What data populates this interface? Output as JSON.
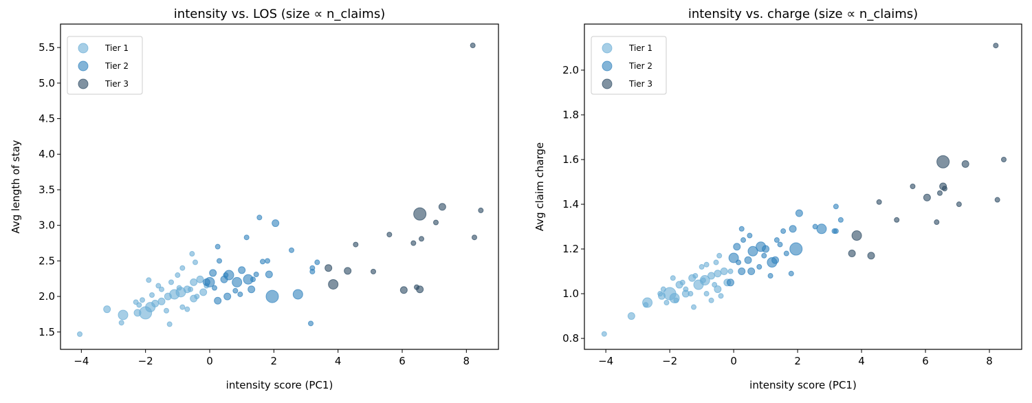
{
  "tier_colors": {
    "Tier 1": "#6baed6",
    "Tier 2": "#3182bd",
    "Tier 3": "#2c4a63"
  },
  "chart_data": [
    {
      "type": "scatter",
      "title": "intensity vs. LOS (size ∝ n_claims)",
      "xlabel": "intensity score (PC1)",
      "ylabel": "Avg length of stay",
      "xlim": [
        -4.65,
        9.0
      ],
      "ylim": [
        1.256,
        5.83
      ],
      "xticks": [
        "-4",
        "-2",
        "0",
        "2",
        "4",
        "6",
        "8"
      ],
      "yticks": [
        "1.5",
        "2.0",
        "2.5",
        "3.0",
        "3.5",
        "4.0",
        "4.5",
        "5.0",
        "5.5"
      ],
      "legend": {
        "position": "upper-left",
        "entries": [
          "Tier 1",
          "Tier 2",
          "Tier 3"
        ]
      },
      "y_field": "los"
    },
    {
      "type": "scatter",
      "title": "intensity vs. charge (size ∝ n_claims)",
      "xlabel": "intensity score (PC1)",
      "ylabel": "Avg claim charge",
      "xlim": [
        -4.67,
        9.01
      ],
      "ylim": [
        0.751,
        2.206
      ],
      "xticks": [
        "-4",
        "-2",
        "0",
        "2",
        "4",
        "6",
        "8"
      ],
      "yticks": [
        "0.8",
        "1.0",
        "1.2",
        "1.4",
        "1.6",
        "1.8",
        "2.0"
      ],
      "legend": {
        "position": "upper-left",
        "entries": [
          "Tier 1",
          "Tier 2",
          "Tier 3"
        ]
      },
      "y_field": "charge"
    }
  ],
  "points_columns": [
    "intensity",
    "los",
    "charge",
    "relative_size",
    "tier"
  ],
  "points": [
    [
      8.2,
      5.53,
      2.11,
      1,
      3
    ],
    [
      8.45,
      3.21,
      1.6,
      1,
      3
    ],
    [
      7.25,
      3.26,
      1.58,
      2,
      3
    ],
    [
      6.55,
      3.16,
      1.59,
      4,
      3
    ],
    [
      7.05,
      3.04,
      1.4,
      1,
      3
    ],
    [
      8.25,
      2.83,
      1.42,
      1,
      3
    ],
    [
      6.6,
      2.81,
      1.47,
      1,
      3
    ],
    [
      6.35,
      2.75,
      1.32,
      1,
      3
    ],
    [
      5.6,
      2.87,
      1.48,
      1,
      3
    ],
    [
      4.55,
      2.73,
      1.41,
      1,
      3
    ],
    [
      3.7,
      2.4,
      1.18,
      2,
      3
    ],
    [
      4.3,
      2.36,
      1.17,
      2,
      3
    ],
    [
      5.1,
      2.35,
      1.33,
      1,
      3
    ],
    [
      3.85,
      2.17,
      1.26,
      3,
      3
    ],
    [
      6.05,
      2.09,
      1.43,
      2,
      3
    ],
    [
      6.45,
      2.13,
      1.45,
      1,
      3
    ],
    [
      6.55,
      2.1,
      1.48,
      2,
      3
    ],
    [
      3.15,
      1.62,
      1.28,
      1,
      2
    ],
    [
      3.2,
      2.35,
      1.39,
      1,
      2
    ],
    [
      3.2,
      2.4,
      1.28,
      1,
      2
    ],
    [
      3.35,
      2.48,
      1.33,
      1,
      2
    ],
    [
      2.75,
      2.03,
      1.29,
      3,
      2
    ],
    [
      2.55,
      2.65,
      1.3,
      1,
      2
    ],
    [
      2.05,
      3.03,
      1.36,
      2,
      2
    ],
    [
      1.95,
      2.0,
      1.2,
      4,
      2
    ],
    [
      1.85,
      2.31,
      1.29,
      2,
      2
    ],
    [
      1.55,
      3.11,
      1.28,
      1,
      2
    ],
    [
      1.65,
      2.49,
      1.18,
      1,
      2
    ],
    [
      1.8,
      2.5,
      1.09,
      1,
      2
    ],
    [
      1.3,
      2.1,
      1.15,
      2,
      2
    ],
    [
      1.2,
      2.24,
      1.14,
      3,
      2
    ],
    [
      1.35,
      2.24,
      1.24,
      1,
      2
    ],
    [
      1.45,
      2.31,
      1.22,
      1,
      2
    ],
    [
      1.15,
      2.83,
      1.08,
      1,
      2
    ],
    [
      1.0,
      2.37,
      1.2,
      2,
      2
    ],
    [
      0.85,
      2.2,
      1.21,
      3,
      2
    ],
    [
      0.95,
      2.03,
      1.17,
      1,
      2
    ],
    [
      0.6,
      2.3,
      1.19,
      3,
      2
    ],
    [
      0.45,
      2.24,
      1.15,
      2,
      2
    ],
    [
      0.3,
      2.5,
      1.24,
      1,
      2
    ],
    [
      0.25,
      2.7,
      1.29,
      1,
      2
    ],
    [
      0.25,
      1.94,
      1.1,
      2,
      2
    ],
    [
      0.1,
      2.33,
      1.21,
      2,
      2
    ],
    [
      0.0,
      2.2,
      1.16,
      3,
      2
    ],
    [
      0.15,
      2.12,
      1.14,
      1,
      2
    ],
    [
      -0.1,
      2.2,
      1.05,
      2,
      2
    ],
    [
      0.55,
      2.0,
      1.1,
      2,
      2
    ],
    [
      0.8,
      2.08,
      1.12,
      1,
      2
    ],
    [
      0.5,
      2.3,
      1.26,
      1,
      2
    ],
    [
      -4.05,
      1.47,
      0.82,
      1,
      1
    ],
    [
      -3.2,
      1.82,
      0.9,
      2,
      1
    ],
    [
      -2.7,
      1.74,
      0.96,
      3,
      1
    ],
    [
      -2.75,
      1.63,
      0.95,
      1,
      1
    ],
    [
      -2.25,
      1.77,
      0.99,
      2,
      1
    ],
    [
      -2.0,
      1.77,
      1.0,
      4,
      1
    ],
    [
      -1.85,
      1.85,
      0.98,
      3,
      1
    ],
    [
      -2.2,
      1.88,
      1.02,
      1,
      1
    ],
    [
      -1.7,
      1.9,
      1.04,
      2,
      1
    ],
    [
      -1.5,
      1.93,
      1.0,
      2,
      1
    ],
    [
      -1.3,
      2.0,
      1.07,
      2,
      1
    ],
    [
      -1.1,
      2.03,
      1.04,
      3,
      1
    ],
    [
      -0.9,
      2.06,
      1.06,
      3,
      1
    ],
    [
      -0.7,
      2.1,
      1.08,
      2,
      1
    ],
    [
      -0.5,
      2.2,
      1.09,
      2,
      1
    ],
    [
      -0.3,
      2.24,
      1.1,
      2,
      1
    ],
    [
      -0.5,
      1.97,
      1.02,
      2,
      1
    ],
    [
      -0.4,
      2.0,
      0.99,
      1,
      1
    ],
    [
      -0.6,
      2.1,
      1.04,
      1,
      1
    ],
    [
      -1.0,
      2.3,
      1.12,
      1,
      1
    ],
    [
      -1.2,
      2.2,
      1.08,
      1,
      1
    ],
    [
      -1.5,
      2.1,
      1.02,
      1,
      1
    ],
    [
      -1.8,
      2.02,
      0.97,
      1,
      1
    ],
    [
      -2.1,
      1.95,
      0.96,
      1,
      1
    ],
    [
      -2.3,
      1.92,
      1.0,
      1,
      1
    ],
    [
      -1.25,
      1.61,
      0.94,
      1,
      1
    ],
    [
      -0.85,
      2.4,
      1.13,
      1,
      1
    ],
    [
      -0.55,
      2.6,
      1.14,
      1,
      1
    ],
    [
      -0.45,
      2.48,
      1.17,
      1,
      1
    ],
    [
      -1.35,
      1.8,
      1.0,
      1,
      1
    ],
    [
      -0.7,
      1.82,
      0.97,
      1,
      1
    ],
    [
      -0.2,
      2.06,
      1.05,
      2,
      1
    ],
    [
      -1.6,
      2.15,
      1.05,
      1,
      1
    ],
    [
      -0.95,
      2.12,
      1.06,
      1,
      1
    ],
    [
      -0.1,
      2.15,
      1.1,
      1,
      1
    ],
    [
      -1.9,
      2.23,
      1.07,
      1,
      1
    ],
    [
      -0.85,
      1.85,
      1.0,
      1,
      1
    ]
  ]
}
